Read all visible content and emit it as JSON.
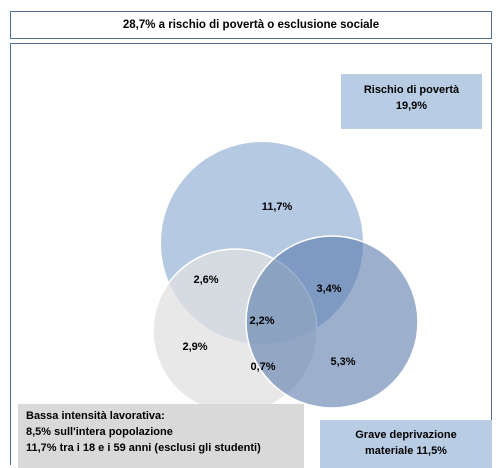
{
  "header": {
    "title": "28,7% a rischio di povertà o esclusione sociale"
  },
  "labels": {
    "poverty": {
      "line1": "Rischio di povertà",
      "line2": "19,9%"
    },
    "work": {
      "line1": "Bassa intensità lavorativa:",
      "line2": "8,5% sull'intera popolazione",
      "line3": "11,7% tra i 18 e i 59 anni (esclusi gli studenti)"
    },
    "deprivation": {
      "line1": "Grave deprivazione",
      "line2": "materiale 11,5%"
    }
  },
  "regions": {
    "poverty_only": "11,7%",
    "poverty_work": "2,6%",
    "poverty_deprivation": "3,4%",
    "all_three": "2,2%",
    "work_only": "2,9%",
    "work_deprivation": "0,7%",
    "deprivation_only": "5,3%"
  },
  "colors": {
    "border": "#4f6d9a",
    "poverty_circle": "#a9c0de",
    "work_circle": "#e6e6e6",
    "deprivation_circle": "#5a7bab",
    "label_box_blue": "#b8cce4",
    "label_box_gray": "#d9d9d9"
  }
}
